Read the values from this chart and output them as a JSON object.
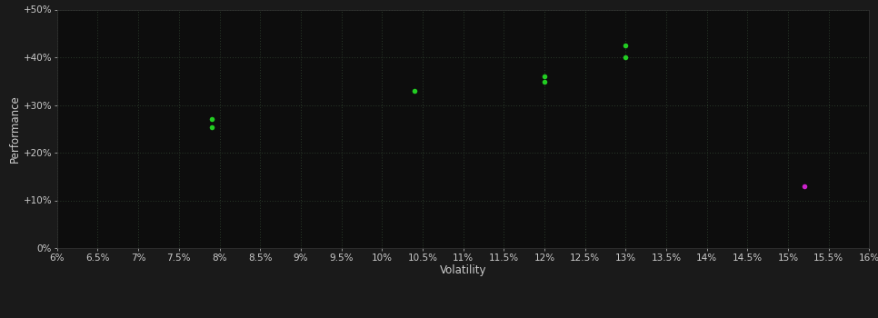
{
  "background_color": "#1a1a1a",
  "plot_bg_color": "#0d0d0d",
  "text_color": "#cccccc",
  "xlabel": "Volatility",
  "ylabel": "Performance",
  "xlim": [
    0.06,
    0.16
  ],
  "ylim": [
    0.0,
    0.5
  ],
  "xticks": [
    0.06,
    0.065,
    0.07,
    0.075,
    0.08,
    0.085,
    0.09,
    0.095,
    0.1,
    0.105,
    0.11,
    0.115,
    0.12,
    0.125,
    0.13,
    0.135,
    0.14,
    0.145,
    0.15,
    0.155,
    0.16
  ],
  "xtick_labels": [
    "6%",
    "6.5%",
    "7%",
    "7.5%",
    "8%",
    "8.5%",
    "9%",
    "9.5%",
    "10%",
    "10.5%",
    "11%",
    "11.5%",
    "12%",
    "12.5%",
    "13%",
    "13.5%",
    "14%",
    "14.5%",
    "15%",
    "15.5%",
    "16%"
  ],
  "yticks": [
    0.0,
    0.1,
    0.2,
    0.3,
    0.4,
    0.5
  ],
  "ytick_labels": [
    "0%",
    "+10%",
    "+20%",
    "+30%",
    "+40%",
    "+50%"
  ],
  "green_points": [
    [
      0.079,
      0.27
    ],
    [
      0.079,
      0.253
    ],
    [
      0.104,
      0.33
    ],
    [
      0.12,
      0.36
    ],
    [
      0.12,
      0.348
    ],
    [
      0.13,
      0.425
    ],
    [
      0.13,
      0.4
    ]
  ],
  "magenta_points": [
    [
      0.152,
      0.13
    ]
  ],
  "green_color": "#22cc22",
  "magenta_color": "#cc22cc",
  "marker_size": 4,
  "grid_color": "#2a3a2a",
  "tick_fontsize": 7.5,
  "label_fontsize": 8.5
}
